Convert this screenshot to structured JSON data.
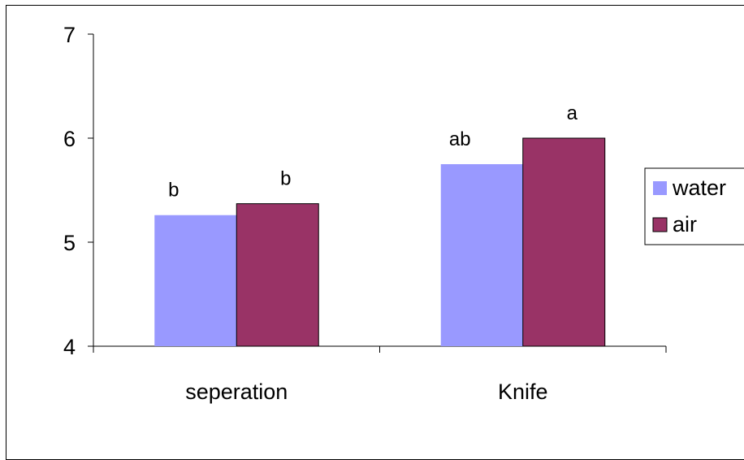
{
  "chart_data": {
    "type": "bar",
    "categories": [
      "seperation",
      "Knife"
    ],
    "series": [
      {
        "name": "water",
        "color": "#9999ff",
        "values": [
          5.26,
          5.75
        ],
        "labels": [
          "b",
          "ab"
        ]
      },
      {
        "name": "air",
        "color": "#993366",
        "values": [
          5.37,
          6.0
        ],
        "labels": [
          "b",
          "a"
        ]
      }
    ],
    "ylim": [
      4,
      7
    ],
    "yticks": [
      "4",
      "5",
      "6",
      "7"
    ],
    "grid": false,
    "legend_position": "right"
  }
}
